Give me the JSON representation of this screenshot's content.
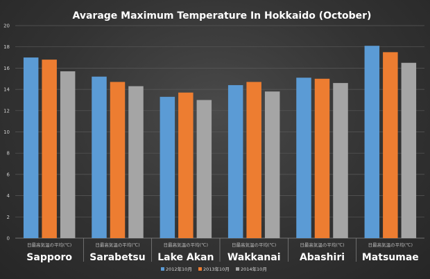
{
  "chart_data": {
    "type": "bar",
    "title": "Avarage Maximum Temperature In Hokkaido (October)",
    "categories": [
      "Sapporo",
      "Sarabetsu",
      "Lake Akan",
      "Wakkanai",
      "Abashiri",
      "Matsumae"
    ],
    "category_sublabel": "日最高気温の平均(℃)",
    "series": [
      {
        "name": "2012年10月",
        "color": "#5b9bd5",
        "values": [
          17.0,
          15.2,
          13.3,
          14.4,
          15.1,
          18.1
        ]
      },
      {
        "name": "2013年10月",
        "color": "#ed7d31",
        "values": [
          16.8,
          14.7,
          13.7,
          14.7,
          15.0,
          17.5
        ]
      },
      {
        "name": "2014年10月",
        "color": "#a5a5a5",
        "values": [
          15.7,
          14.3,
          13.0,
          13.8,
          14.6,
          16.5
        ]
      }
    ],
    "ylim": [
      0,
      20
    ],
    "yticks": [
      0,
      2,
      4,
      6,
      8,
      10,
      12,
      14,
      16,
      18,
      20
    ],
    "grid": true,
    "legend_position": "bottom"
  }
}
